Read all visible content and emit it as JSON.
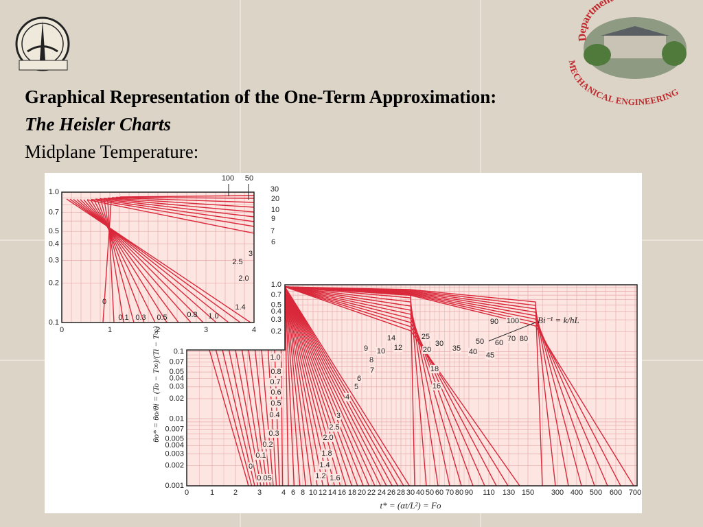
{
  "header": {
    "title": "Graphical Representation of the One-Term Approximation:",
    "subtitle": "The Heisler Charts",
    "section": "Midplane Temperature:"
  },
  "logo": {
    "top": "Department Of",
    "bottom": "MECHANICAL ENGINEERING"
  },
  "figure": {
    "inset": {
      "yticks": [
        "1.0",
        "0.7",
        "0.5",
        "0.4",
        "0.3",
        "0.2",
        "0.1"
      ],
      "xticks": [
        "0",
        "1",
        "2",
        "3",
        "4"
      ],
      "curve_labels": [
        "100",
        "50",
        "30",
        "20",
        "10",
        "9",
        "7",
        "6",
        "3",
        "2.5",
        "2.0",
        "1.4",
        "0",
        "0.1",
        "0.3",
        "0.5",
        "0.8",
        "1.0"
      ]
    },
    "main": {
      "yticks": [
        "1.0",
        "0.7",
        "0.5",
        "0.4",
        "0.3",
        "0.2",
        "0.1",
        "0.07",
        "0.05",
        "0.04",
        "0.03",
        "0.02",
        "0.01",
        "0.007",
        "0.005",
        "0.004",
        "0.003",
        "0.002",
        "0.001"
      ],
      "xticks": [
        "0",
        "1",
        "2",
        "3",
        "4",
        "6",
        "8",
        "10",
        "12",
        "14",
        "16",
        "18",
        "20",
        "22",
        "24",
        "26",
        "28",
        "30",
        "40",
        "50",
        "60",
        "70",
        "80",
        "90",
        "110",
        "130",
        "150",
        "300",
        "400",
        "500",
        "600",
        "700"
      ],
      "curve_labels": [
        "90",
        "100",
        "70",
        "80",
        "50",
        "60",
        "40",
        "45",
        "25",
        "30",
        "35",
        "20",
        "18",
        "16",
        "14",
        "12",
        "9",
        "10",
        "8",
        "7",
        "6",
        "5",
        "4",
        "3",
        "2.5",
        "2.0",
        "1.8",
        "1.4",
        "1.2",
        "1.6",
        "1.0",
        "0.8",
        "0.7",
        "0.6",
        "0.5",
        "0.4",
        "0.3",
        "0.2",
        "0.1",
        "0",
        "0.05"
      ],
      "legend": "Bi⁻¹ = k/hL",
      "y_label": "θo* = θo/θi = (To − T∞)/(Ti − T∞)",
      "x_label": "t* = (αt/L²) = Fo"
    }
  }
}
